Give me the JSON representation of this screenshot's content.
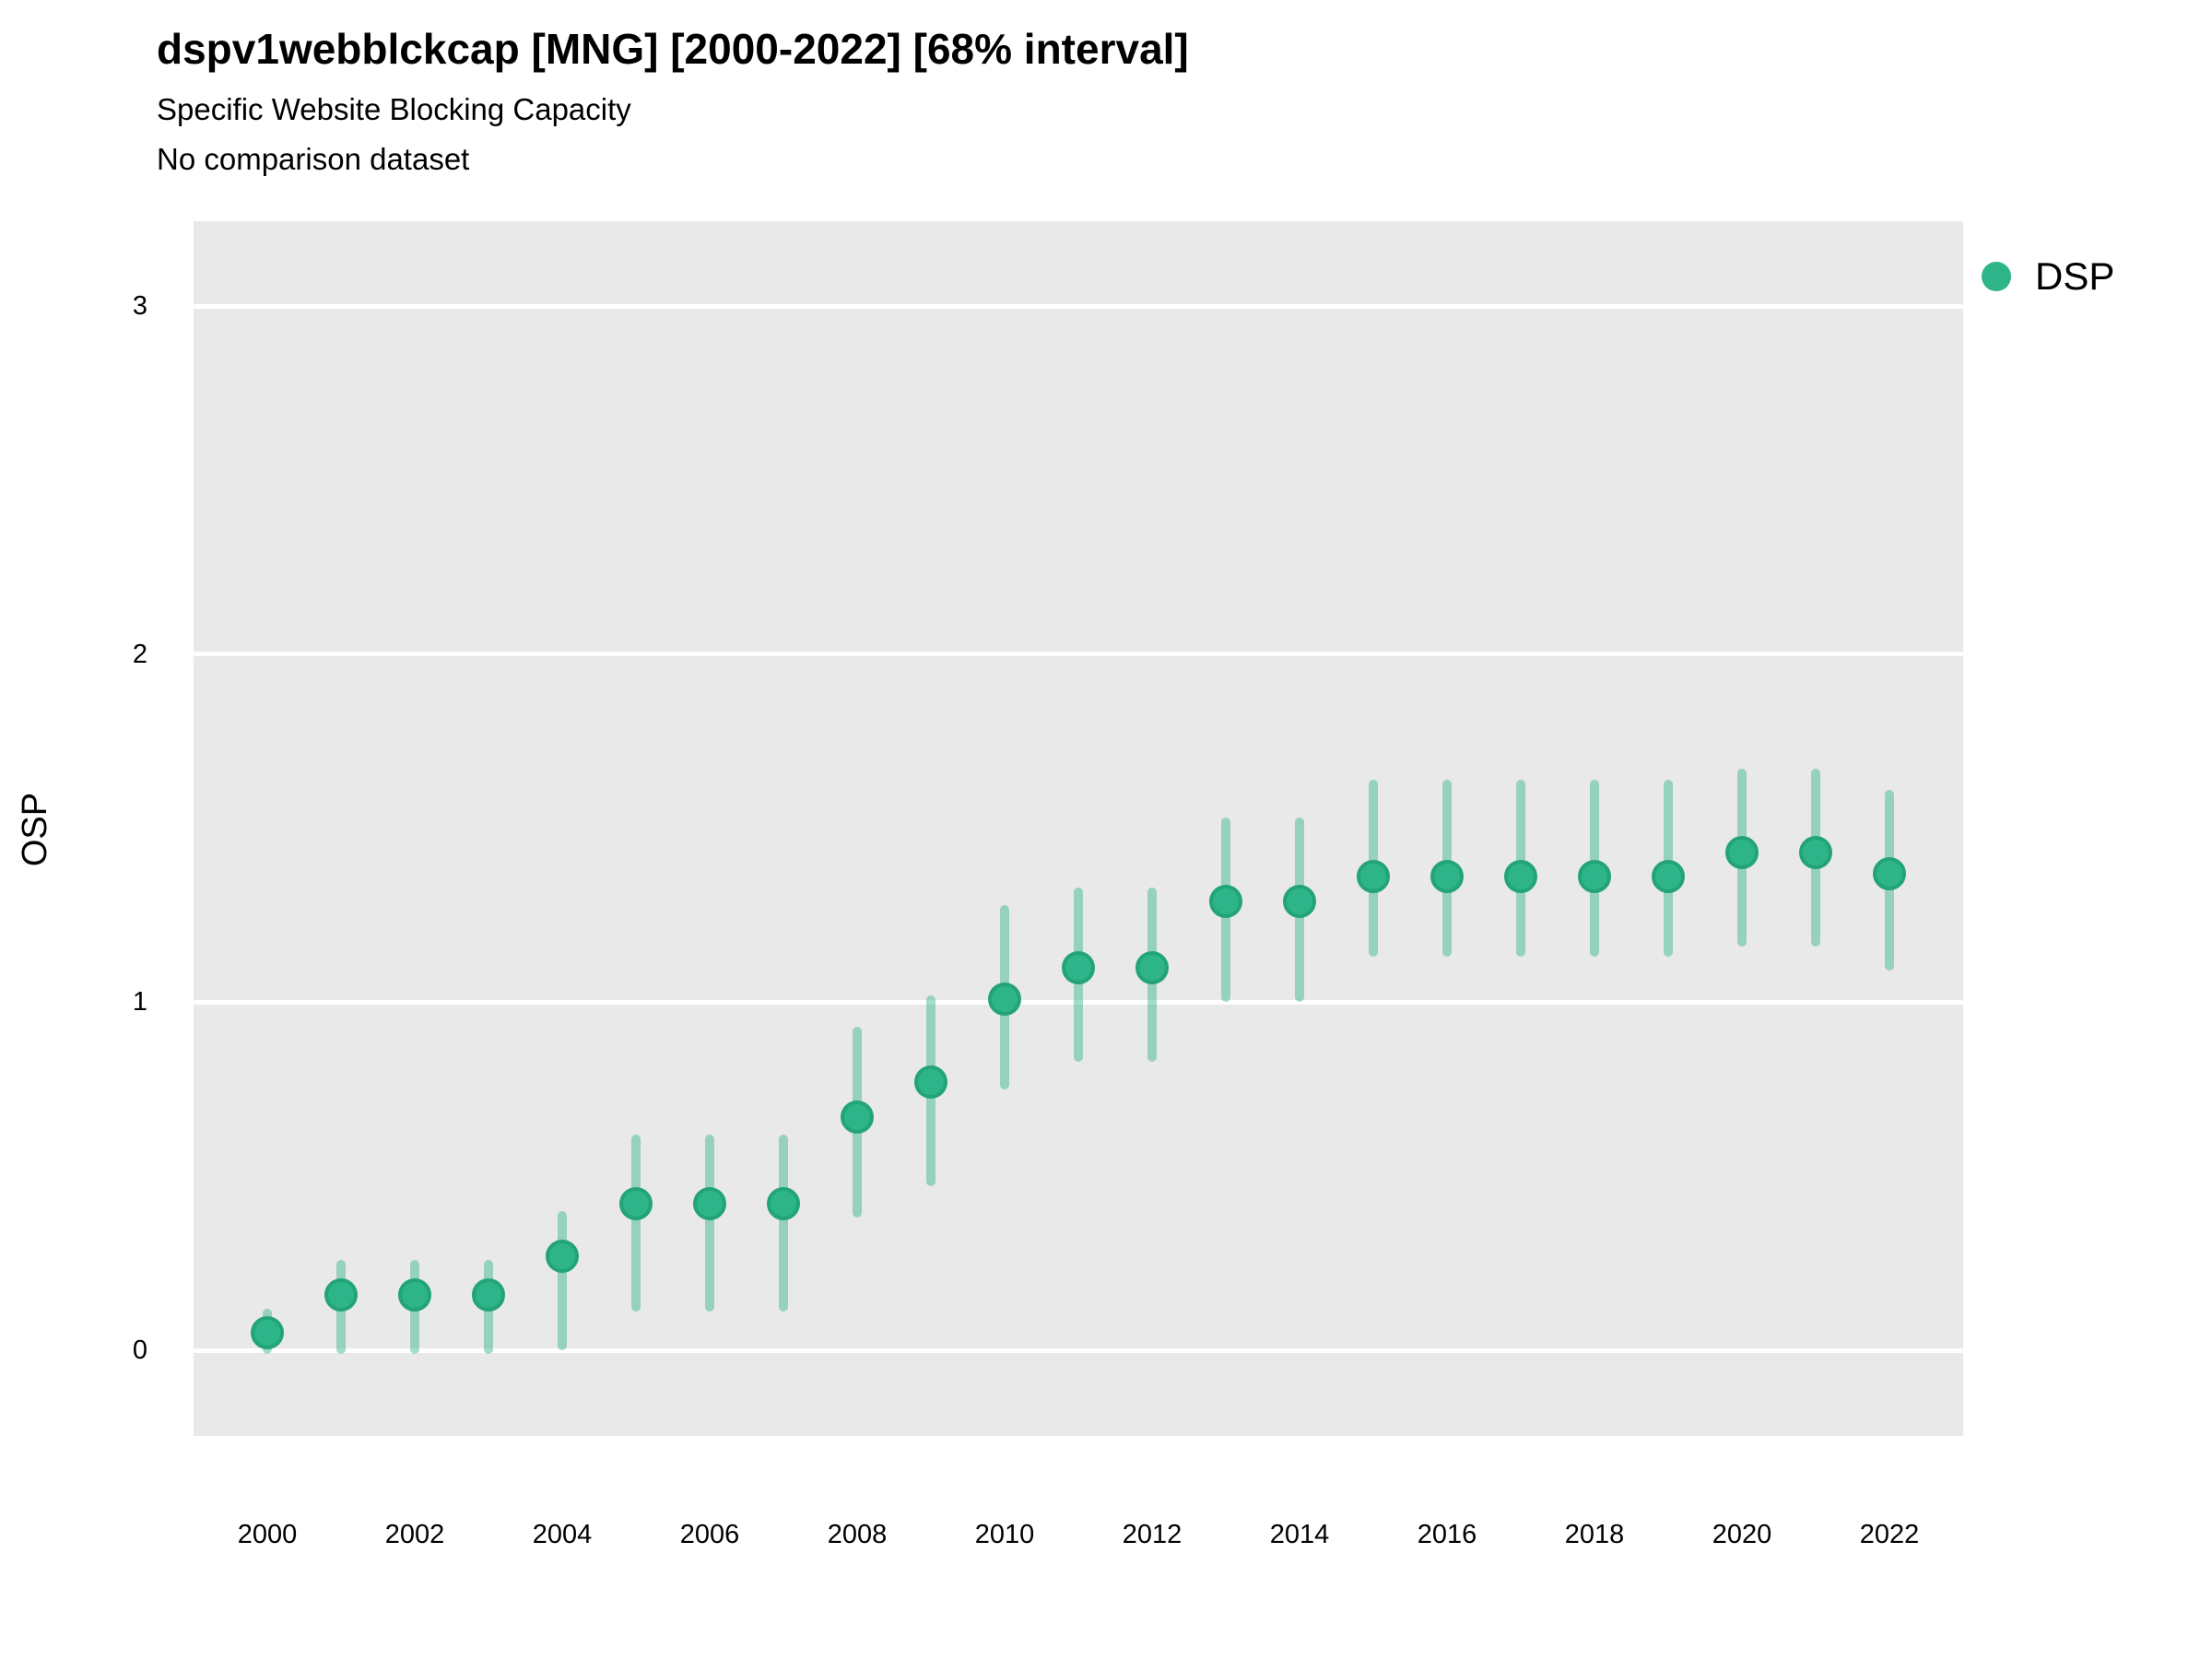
{
  "header": {
    "title": "dspv1webblckcap [MNG] [2000-2022] [68% interval]",
    "subtitle": "Specific Website Blocking Capacity",
    "note": "No comparison dataset"
  },
  "legend": {
    "position": "right",
    "items": [
      {
        "label": "DSP",
        "marker": "circle-icon"
      }
    ]
  },
  "colors": {
    "point_fill": "#2eb489",
    "point_border": "#23a477",
    "errorbar": "rgba(46,180,137,0.45)",
    "panel_background": "#e9e9e9",
    "gridline": "#ffffff",
    "text": "#000000"
  },
  "chart_data": {
    "type": "scatter",
    "title": "dspv1webblckcap [MNG] [2000-2022] [68% interval]",
    "subtitle": "Specific Website Blocking Capacity",
    "note": "No comparison dataset",
    "xlabel": "",
    "ylabel": "OSP",
    "x_ticks": [
      2000,
      2002,
      2004,
      2006,
      2008,
      2010,
      2012,
      2014,
      2016,
      2018,
      2020,
      2022
    ],
    "y_ticks": [
      0,
      1,
      2,
      3
    ],
    "xlim": [
      1999,
      2023
    ],
    "ylim": [
      -0.25,
      3.25
    ],
    "grid": "horizontal-major-only",
    "legend_position": "right",
    "interval_note": "68% interval shown as vertical error bars",
    "series": [
      {
        "name": "DSP",
        "points": [
          {
            "x": 2000,
            "y": 0.05,
            "low": -0.01,
            "high": 0.12
          },
          {
            "x": 2001,
            "y": 0.16,
            "low": -0.01,
            "high": 0.26
          },
          {
            "x": 2002,
            "y": 0.16,
            "low": -0.01,
            "high": 0.26
          },
          {
            "x": 2003,
            "y": 0.16,
            "low": -0.01,
            "high": 0.26
          },
          {
            "x": 2004,
            "y": 0.27,
            "low": 0.0,
            "high": 0.4
          },
          {
            "x": 2005,
            "y": 0.42,
            "low": 0.11,
            "high": 0.62
          },
          {
            "x": 2006,
            "y": 0.42,
            "low": 0.11,
            "high": 0.62
          },
          {
            "x": 2007,
            "y": 0.42,
            "low": 0.11,
            "high": 0.62
          },
          {
            "x": 2008,
            "y": 0.67,
            "low": 0.38,
            "high": 0.93
          },
          {
            "x": 2009,
            "y": 0.77,
            "low": 0.47,
            "high": 1.02
          },
          {
            "x": 2010,
            "y": 1.01,
            "low": 0.75,
            "high": 1.28
          },
          {
            "x": 2011,
            "y": 1.1,
            "low": 0.83,
            "high": 1.33
          },
          {
            "x": 2012,
            "y": 1.1,
            "low": 0.83,
            "high": 1.33
          },
          {
            "x": 2013,
            "y": 1.29,
            "low": 1.0,
            "high": 1.53
          },
          {
            "x": 2014,
            "y": 1.29,
            "low": 1.0,
            "high": 1.53
          },
          {
            "x": 2015,
            "y": 1.36,
            "low": 1.13,
            "high": 1.64
          },
          {
            "x": 2016,
            "y": 1.36,
            "low": 1.13,
            "high": 1.64
          },
          {
            "x": 2017,
            "y": 1.36,
            "low": 1.13,
            "high": 1.64
          },
          {
            "x": 2018,
            "y": 1.36,
            "low": 1.13,
            "high": 1.64
          },
          {
            "x": 2019,
            "y": 1.36,
            "low": 1.13,
            "high": 1.64
          },
          {
            "x": 2020,
            "y": 1.43,
            "low": 1.16,
            "high": 1.67
          },
          {
            "x": 2021,
            "y": 1.43,
            "low": 1.16,
            "high": 1.67
          },
          {
            "x": 2022,
            "y": 1.37,
            "low": 1.09,
            "high": 1.61
          }
        ]
      }
    ]
  }
}
